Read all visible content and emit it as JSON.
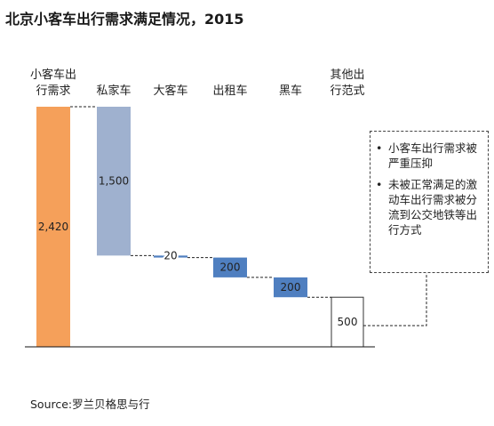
{
  "title": "北京小客车出行需求满足情况，2015",
  "chart_data": {
    "type": "waterfall",
    "steps": [
      {
        "label": [
          "小客车出",
          "行需求"
        ],
        "value": 2420,
        "value_label": "2,420",
        "kind": "total",
        "color": "#f5a05a"
      },
      {
        "label": [
          "私家车"
        ],
        "value": 1500,
        "value_label": "1,500",
        "kind": "decrease",
        "color": "#9fb1cf"
      },
      {
        "label": [
          "大客车"
        ],
        "value": 20,
        "value_label": "20",
        "kind": "decrease",
        "color": "#4f7fc0"
      },
      {
        "label": [
          "出租车"
        ],
        "value": 200,
        "value_label": "200",
        "kind": "decrease",
        "color": "#4f7fc0"
      },
      {
        "label": [
          "黑车"
        ],
        "value": 200,
        "value_label": "200",
        "kind": "decrease",
        "color": "#4f7fc0"
      },
      {
        "label": [
          "其他出",
          "行范式"
        ],
        "value": 500,
        "value_label": "500",
        "kind": "remainder",
        "color": "#ffffff"
      }
    ],
    "ylim": [
      0,
      2420
    ]
  },
  "note": {
    "bullets": [
      "小客车出行需求被严重压抑",
      "未被正常满足的激动车出行需求被分流到公交地铁等出行方式"
    ]
  },
  "source": "Source:罗兰贝格思与行"
}
